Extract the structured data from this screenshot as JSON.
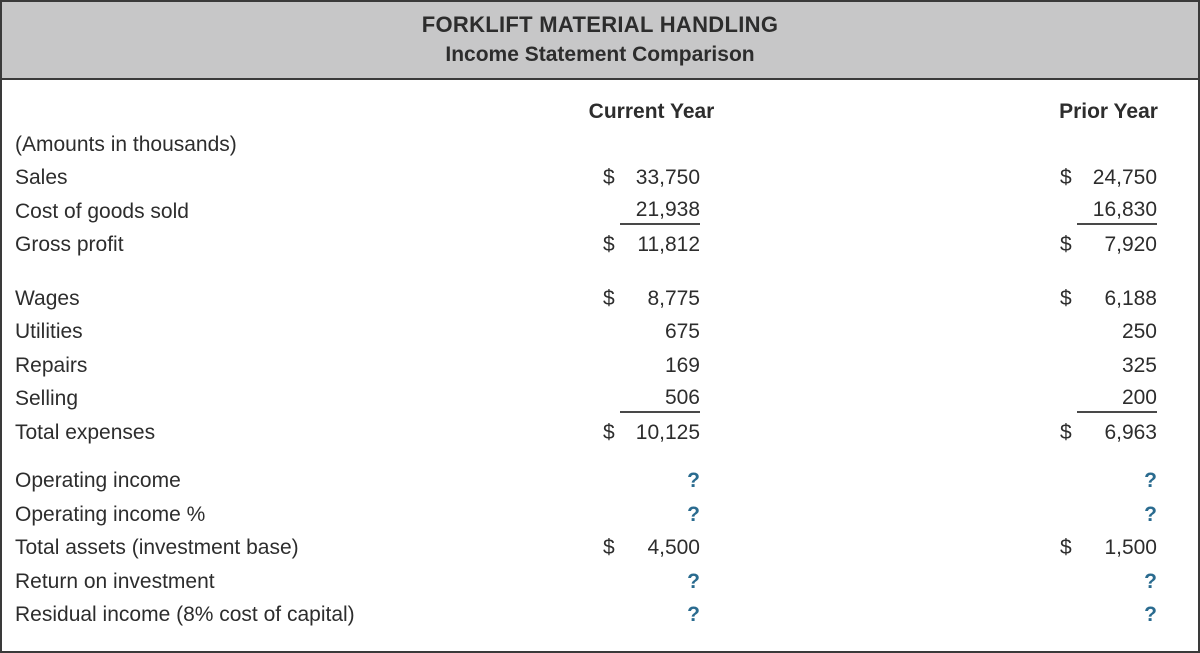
{
  "header": {
    "company": "FORKLIFT MATERIAL HANDLING",
    "report": "Income Statement Comparison"
  },
  "columns": {
    "current": "Current Year",
    "prior": "Prior Year"
  },
  "note": "(Amounts in thousands)",
  "colors": {
    "band_bg": "#c7c7c8",
    "border": "#3a3a3a",
    "text": "#2d2d2d",
    "unknown_value": "#2a6b8f",
    "underline": "#494949"
  },
  "sections": [
    {
      "rows": [
        {
          "label": "Sales",
          "current": {
            "sym": "$",
            "num": "33,750"
          },
          "prior": {
            "sym": "$",
            "num": "24,750"
          }
        },
        {
          "label": "Cost of goods sold",
          "underline": true,
          "current": {
            "sym": "",
            "num": "21,938"
          },
          "prior": {
            "sym": "",
            "num": "16,830"
          }
        },
        {
          "label": "Gross profit",
          "current": {
            "sym": "$",
            "num": "11,812"
          },
          "prior": {
            "sym": "$",
            "num": "7,920"
          }
        }
      ]
    },
    {
      "rows": [
        {
          "label": "Wages",
          "current": {
            "sym": "$",
            "num": "8,775"
          },
          "prior": {
            "sym": "$",
            "num": "6,188"
          }
        },
        {
          "label": "Utilities",
          "current": {
            "sym": "",
            "num": "675"
          },
          "prior": {
            "sym": "",
            "num": "250"
          }
        },
        {
          "label": "Repairs",
          "current": {
            "sym": "",
            "num": "169"
          },
          "prior": {
            "sym": "",
            "num": "325"
          }
        },
        {
          "label": "Selling",
          "underline": true,
          "current": {
            "sym": "",
            "num": "506"
          },
          "prior": {
            "sym": "",
            "num": "200"
          }
        },
        {
          "label": "Total expenses",
          "current": {
            "sym": "$",
            "num": "10,125"
          },
          "prior": {
            "sym": "$",
            "num": "6,963"
          }
        }
      ]
    },
    {
      "rows": [
        {
          "label": "Operating income",
          "unknown": true,
          "current": {
            "sym": "",
            "num": "?"
          },
          "prior": {
            "sym": "",
            "num": "?"
          }
        },
        {
          "label": "Operating income %",
          "unknown": true,
          "current": {
            "sym": "",
            "num": "?"
          },
          "prior": {
            "sym": "",
            "num": "?"
          }
        },
        {
          "label": "Total assets (investment base)",
          "current": {
            "sym": "$",
            "num": "4,500"
          },
          "prior": {
            "sym": "$",
            "num": "1,500"
          }
        },
        {
          "label": "Return on investment",
          "unknown": true,
          "current": {
            "sym": "",
            "num": "?"
          },
          "prior": {
            "sym": "",
            "num": "?"
          }
        },
        {
          "label": "Residual income (8% cost of capital)",
          "unknown": true,
          "current": {
            "sym": "",
            "num": "?"
          },
          "prior": {
            "sym": "",
            "num": "?"
          }
        }
      ]
    }
  ]
}
